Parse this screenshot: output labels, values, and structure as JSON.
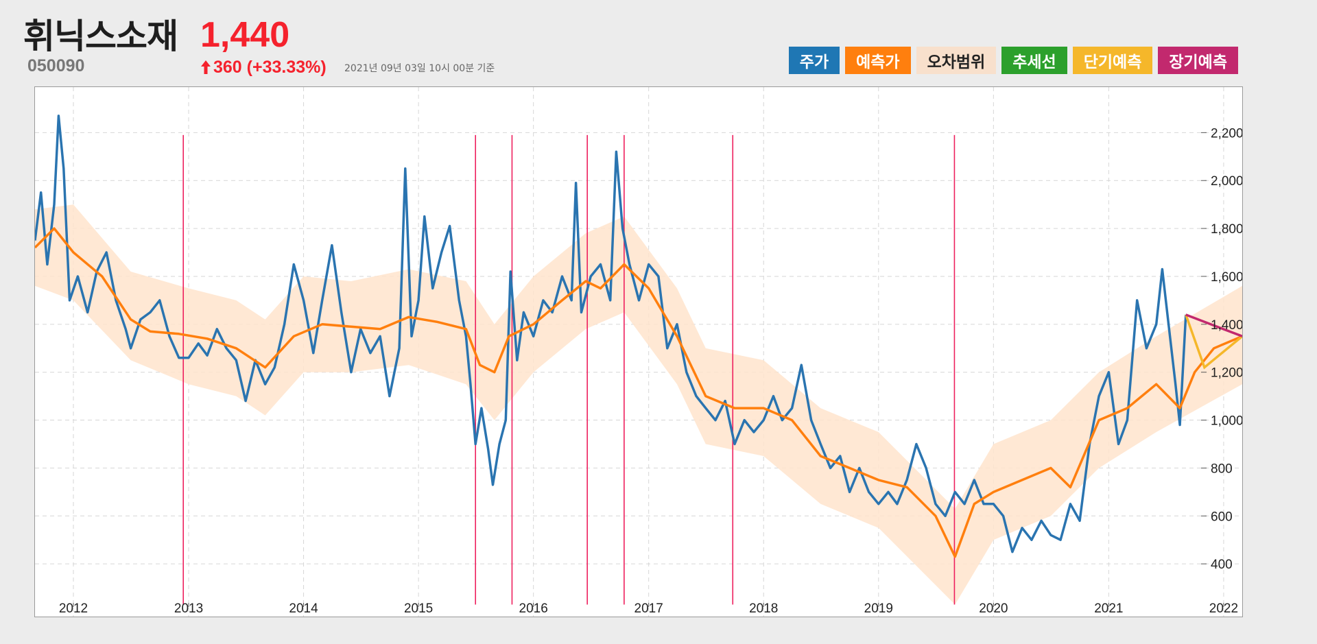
{
  "header": {
    "stock_name": "휘닉스소재",
    "price": "1,440",
    "code": "050090",
    "change": "360 (+33.33%)",
    "as_of": "2021년 09년 03일 10시 00분 기준"
  },
  "legend": [
    {
      "label": "주가",
      "bg": "#1f77b4",
      "fg": "#ffffff"
    },
    {
      "label": "예측가",
      "bg": "#ff7f0e",
      "fg": "#ffffff"
    },
    {
      "label": "오차범위",
      "bg": "#f8e0cc",
      "fg": "#222222"
    },
    {
      "label": "추세선",
      "bg": "#2ca02c",
      "fg": "#ffffff"
    },
    {
      "label": "단기예측",
      "bg": "#f5b72a",
      "fg": "#ffffff"
    },
    {
      "label": "장기예측",
      "bg": "#c2296e",
      "fg": "#ffffff"
    }
  ],
  "colors": {
    "price_up": "#f5222d",
    "price_line": "#2a74b0",
    "forecast_line": "#ff7f0e",
    "error_band": "#ffe4cc",
    "event_line": "#ee1f5d",
    "short_forecast": "#f5b72a",
    "long_forecast": "#c2296e",
    "grid": "#d6d6d6"
  },
  "chart_data": {
    "type": "line",
    "x_axis": {
      "type": "date",
      "min": "2011-09-01",
      "max": "2022-03-01",
      "tick_labels": [
        "2012",
        "2013",
        "2014",
        "2015",
        "2016",
        "2017",
        "2018",
        "2019",
        "2020",
        "2021",
        "2022"
      ]
    },
    "y_axis": {
      "min": 180,
      "max": 2390,
      "position": "right",
      "tick_values": [
        400,
        600,
        800,
        1000,
        1200,
        1400,
        1600,
        1800,
        2000,
        2200
      ],
      "tick_labels": [
        "400",
        "600",
        "800",
        "1,000",
        "1,200",
        "1,400",
        "1,600",
        "1,800",
        "2,000",
        "2,200"
      ]
    },
    "grid": true,
    "series": [
      {
        "name": "주가",
        "points": [
          [
            "2011-09-01",
            1750
          ],
          [
            "2011-09-20",
            1950
          ],
          [
            "2011-10-10",
            1650
          ],
          [
            "2011-11-01",
            1900
          ],
          [
            "2011-11-15",
            2270
          ],
          [
            "2011-12-01",
            2050
          ],
          [
            "2011-12-20",
            1500
          ],
          [
            "2012-01-15",
            1600
          ],
          [
            "2012-02-15",
            1450
          ],
          [
            "2012-03-15",
            1620
          ],
          [
            "2012-04-15",
            1700
          ],
          [
            "2012-05-15",
            1500
          ],
          [
            "2012-06-15",
            1380
          ],
          [
            "2012-07-01",
            1300
          ],
          [
            "2012-08-01",
            1420
          ],
          [
            "2012-09-01",
            1450
          ],
          [
            "2012-10-01",
            1500
          ],
          [
            "2012-11-01",
            1350
          ],
          [
            "2012-12-01",
            1260
          ],
          [
            "2013-01-01",
            1260
          ],
          [
            "2013-02-01",
            1320
          ],
          [
            "2013-03-01",
            1270
          ],
          [
            "2013-04-01",
            1380
          ],
          [
            "2013-05-01",
            1300
          ],
          [
            "2013-06-01",
            1250
          ],
          [
            "2013-07-01",
            1080
          ],
          [
            "2013-08-01",
            1250
          ],
          [
            "2013-09-01",
            1150
          ],
          [
            "2013-10-01",
            1220
          ],
          [
            "2013-11-01",
            1400
          ],
          [
            "2013-12-01",
            1650
          ],
          [
            "2014-01-01",
            1500
          ],
          [
            "2014-02-01",
            1280
          ],
          [
            "2014-03-01",
            1500
          ],
          [
            "2014-04-01",
            1730
          ],
          [
            "2014-05-01",
            1450
          ],
          [
            "2014-06-01",
            1200
          ],
          [
            "2014-07-01",
            1380
          ],
          [
            "2014-08-01",
            1280
          ],
          [
            "2014-09-01",
            1350
          ],
          [
            "2014-10-01",
            1100
          ],
          [
            "2014-11-01",
            1300
          ],
          [
            "2014-11-20",
            2050
          ],
          [
            "2014-12-10",
            1350
          ],
          [
            "2015-01-01",
            1500
          ],
          [
            "2015-01-20",
            1850
          ],
          [
            "2015-02-15",
            1550
          ],
          [
            "2015-03-15",
            1700
          ],
          [
            "2015-04-10",
            1810
          ],
          [
            "2015-05-10",
            1500
          ],
          [
            "2015-06-01",
            1350
          ],
          [
            "2015-06-15",
            1150
          ],
          [
            "2015-07-01",
            900
          ],
          [
            "2015-07-20",
            1050
          ],
          [
            "2015-08-10",
            880
          ],
          [
            "2015-08-25",
            730
          ],
          [
            "2015-09-15",
            900
          ],
          [
            "2015-10-05",
            1000
          ],
          [
            "2015-10-20",
            1620
          ],
          [
            "2015-11-10",
            1250
          ],
          [
            "2015-12-01",
            1450
          ],
          [
            "2016-01-01",
            1350
          ],
          [
            "2016-02-01",
            1500
          ],
          [
            "2016-03-01",
            1450
          ],
          [
            "2016-04-01",
            1600
          ],
          [
            "2016-05-01",
            1500
          ],
          [
            "2016-05-15",
            1990
          ],
          [
            "2016-06-01",
            1450
          ],
          [
            "2016-07-01",
            1600
          ],
          [
            "2016-08-01",
            1650
          ],
          [
            "2016-09-01",
            1500
          ],
          [
            "2016-09-20",
            2120
          ],
          [
            "2016-10-10",
            1800
          ],
          [
            "2016-11-01",
            1650
          ],
          [
            "2016-12-01",
            1500
          ],
          [
            "2017-01-01",
            1650
          ],
          [
            "2017-02-01",
            1600
          ],
          [
            "2017-03-01",
            1300
          ],
          [
            "2017-04-01",
            1400
          ],
          [
            "2017-05-01",
            1200
          ],
          [
            "2017-06-01",
            1100
          ],
          [
            "2017-07-01",
            1050
          ],
          [
            "2017-08-01",
            1000
          ],
          [
            "2017-09-01",
            1080
          ],
          [
            "2017-10-01",
            900
          ],
          [
            "2017-11-01",
            1000
          ],
          [
            "2017-12-01",
            950
          ],
          [
            "2018-01-01",
            1000
          ],
          [
            "2018-02-01",
            1100
          ],
          [
            "2018-03-01",
            1000
          ],
          [
            "2018-04-01",
            1050
          ],
          [
            "2018-05-01",
            1230
          ],
          [
            "2018-06-01",
            1000
          ],
          [
            "2018-07-01",
            900
          ],
          [
            "2018-08-01",
            800
          ],
          [
            "2018-09-01",
            850
          ],
          [
            "2018-10-01",
            700
          ],
          [
            "2018-11-01",
            800
          ],
          [
            "2018-12-01",
            700
          ],
          [
            "2019-01-01",
            650
          ],
          [
            "2019-02-01",
            700
          ],
          [
            "2019-03-01",
            650
          ],
          [
            "2019-04-01",
            750
          ],
          [
            "2019-05-01",
            900
          ],
          [
            "2019-06-01",
            800
          ],
          [
            "2019-07-01",
            650
          ],
          [
            "2019-08-01",
            600
          ],
          [
            "2019-09-01",
            700
          ],
          [
            "2019-10-01",
            650
          ],
          [
            "2019-11-01",
            750
          ],
          [
            "2019-12-01",
            650
          ],
          [
            "2020-01-01",
            650
          ],
          [
            "2020-02-01",
            600
          ],
          [
            "2020-03-01",
            450
          ],
          [
            "2020-04-01",
            550
          ],
          [
            "2020-05-01",
            500
          ],
          [
            "2020-06-01",
            580
          ],
          [
            "2020-07-01",
            520
          ],
          [
            "2020-08-01",
            500
          ],
          [
            "2020-09-01",
            650
          ],
          [
            "2020-10-01",
            580
          ],
          [
            "2020-11-01",
            900
          ],
          [
            "2020-12-01",
            1100
          ],
          [
            "2021-01-01",
            1200
          ],
          [
            "2021-02-01",
            900
          ],
          [
            "2021-03-01",
            1000
          ],
          [
            "2021-04-01",
            1500
          ],
          [
            "2021-05-01",
            1300
          ],
          [
            "2021-06-01",
            1400
          ],
          [
            "2021-06-20",
            1630
          ],
          [
            "2021-07-10",
            1400
          ],
          [
            "2021-08-01",
            1150
          ],
          [
            "2021-08-15",
            980
          ],
          [
            "2021-09-03",
            1440
          ]
        ]
      },
      {
        "name": "예측가",
        "points": [
          [
            "2011-09-01",
            1720
          ],
          [
            "2011-11-01",
            1800
          ],
          [
            "2012-01-01",
            1700
          ],
          [
            "2012-04-01",
            1600
          ],
          [
            "2012-07-01",
            1420
          ],
          [
            "2012-09-01",
            1370
          ],
          [
            "2012-12-01",
            1360
          ],
          [
            "2013-03-01",
            1340
          ],
          [
            "2013-06-01",
            1300
          ],
          [
            "2013-09-01",
            1220
          ],
          [
            "2013-12-01",
            1350
          ],
          [
            "2014-03-01",
            1400
          ],
          [
            "2014-06-01",
            1390
          ],
          [
            "2014-09-01",
            1380
          ],
          [
            "2014-12-01",
            1430
          ],
          [
            "2015-03-01",
            1410
          ],
          [
            "2015-06-01",
            1380
          ],
          [
            "2015-07-15",
            1230
          ],
          [
            "2015-08-30",
            1200
          ],
          [
            "2015-10-15",
            1350
          ],
          [
            "2016-01-01",
            1400
          ],
          [
            "2016-04-01",
            1500
          ],
          [
            "2016-06-15",
            1580
          ],
          [
            "2016-08-01",
            1550
          ],
          [
            "2016-10-15",
            1650
          ],
          [
            "2017-01-01",
            1550
          ],
          [
            "2017-04-01",
            1350
          ],
          [
            "2017-07-01",
            1100
          ],
          [
            "2017-10-01",
            1050
          ],
          [
            "2018-01-01",
            1050
          ],
          [
            "2018-04-01",
            1000
          ],
          [
            "2018-07-01",
            850
          ],
          [
            "2018-10-01",
            800
          ],
          [
            "2019-01-01",
            750
          ],
          [
            "2019-04-01",
            720
          ],
          [
            "2019-07-01",
            600
          ],
          [
            "2019-09-01",
            430
          ],
          [
            "2019-11-01",
            650
          ],
          [
            "2020-01-01",
            700
          ],
          [
            "2020-04-01",
            750
          ],
          [
            "2020-07-01",
            800
          ],
          [
            "2020-09-01",
            720
          ],
          [
            "2020-12-01",
            1000
          ],
          [
            "2021-03-01",
            1050
          ],
          [
            "2021-06-01",
            1150
          ],
          [
            "2021-08-15",
            1050
          ],
          [
            "2021-10-01",
            1200
          ],
          [
            "2021-12-01",
            1300
          ],
          [
            "2022-03-01",
            1350
          ]
        ]
      },
      {
        "name": "오차범위",
        "band": [
          [
            "2011-09-01",
            1560,
            1880
          ],
          [
            "2012-01-01",
            1500,
            1900
          ],
          [
            "2012-07-01",
            1250,
            1620
          ],
          [
            "2013-01-01",
            1150,
            1550
          ],
          [
            "2013-06-01",
            1100,
            1500
          ],
          [
            "2013-09-01",
            1020,
            1420
          ],
          [
            "2014-01-01",
            1200,
            1600
          ],
          [
            "2014-06-01",
            1200,
            1580
          ],
          [
            "2014-12-01",
            1230,
            1630
          ],
          [
            "2015-06-01",
            1150,
            1580
          ],
          [
            "2015-08-30",
            1000,
            1400
          ],
          [
            "2016-01-01",
            1200,
            1600
          ],
          [
            "2016-06-15",
            1380,
            1780
          ],
          [
            "2016-10-15",
            1450,
            1850
          ],
          [
            "2017-04-01",
            1150,
            1550
          ],
          [
            "2017-07-01",
            900,
            1300
          ],
          [
            "2018-01-01",
            850,
            1250
          ],
          [
            "2018-07-01",
            650,
            1050
          ],
          [
            "2019-01-01",
            550,
            950
          ],
          [
            "2019-09-01",
            230,
            630
          ],
          [
            "2020-01-01",
            500,
            900
          ],
          [
            "2020-07-01",
            600,
            1000
          ],
          [
            "2020-12-01",
            800,
            1200
          ],
          [
            "2021-06-01",
            950,
            1350
          ],
          [
            "2022-03-01",
            1150,
            1560
          ]
        ]
      },
      {
        "name": "단기예측",
        "points": [
          [
            "2021-09-03",
            1440
          ],
          [
            "2021-11-01",
            1220
          ],
          [
            "2022-03-01",
            1350
          ]
        ]
      },
      {
        "name": "장기예측",
        "points": [
          [
            "2021-09-03",
            1440
          ],
          [
            "2022-03-01",
            1350
          ]
        ]
      }
    ],
    "event_lines": [
      "2012-12-15",
      "2015-07-01",
      "2015-10-25",
      "2016-06-20",
      "2016-10-15",
      "2017-09-25",
      "2019-08-30"
    ]
  }
}
